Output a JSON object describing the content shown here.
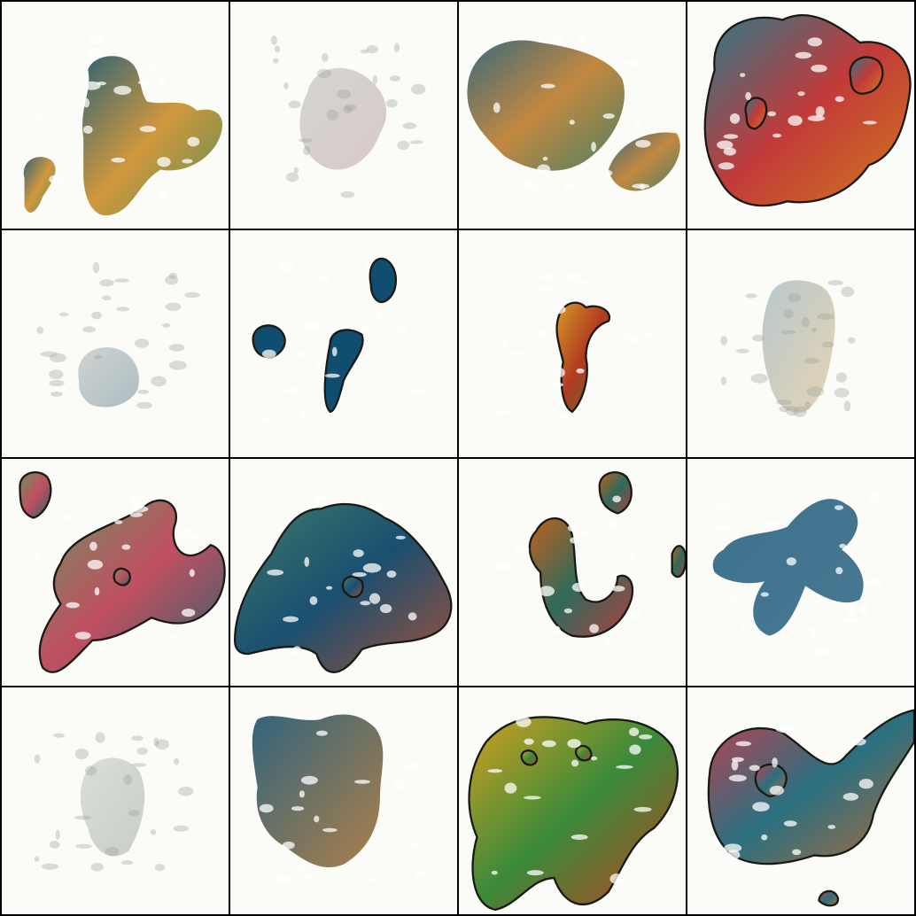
{
  "grid": {
    "rows": 4,
    "cols": 4,
    "background": "#fbfbf8",
    "border": "#000000"
  },
  "tiles": [
    {
      "style": "mixed",
      "colors": [
        "#0f4a5e",
        "#c9861c",
        "#3f7a3a"
      ]
    },
    {
      "style": "faint",
      "colors": [
        "#8a8f8a",
        "#9a6d6d"
      ]
    },
    {
      "style": "mixed",
      "colors": [
        "#1a4f66",
        "#b87420",
        "#2e6a4a"
      ]
    },
    {
      "style": "solid",
      "colors": [
        "#2b7a8a",
        "#c23a3a",
        "#d07a1a"
      ]
    },
    {
      "style": "faint",
      "colors": [
        "#7f8a8c",
        "#1b4a5e"
      ]
    },
    {
      "style": "blobs",
      "colors": [
        "#0f4e6e"
      ]
    },
    {
      "style": "small",
      "colors": [
        "#d49a2a",
        "#b23a20",
        "#4a7a3a"
      ]
    },
    {
      "style": "faint",
      "colors": [
        "#3a6a80",
        "#c08a30"
      ]
    },
    {
      "style": "solid",
      "colors": [
        "#6f8f5f",
        "#c05060",
        "#2f6070"
      ]
    },
    {
      "style": "solid",
      "colors": [
        "#3f7a6a",
        "#1a4f70",
        "#a0503a"
      ]
    },
    {
      "style": "solid",
      "colors": [
        "#c06020",
        "#2f6a5a",
        "#b04040"
      ]
    },
    {
      "style": "mixed",
      "colors": [
        "#1a5a7a",
        "#2a6080"
      ]
    },
    {
      "style": "faint",
      "colors": [
        "#a0a6a0",
        "#6a7a70"
      ]
    },
    {
      "style": "mixed",
      "colors": [
        "#0f4a66",
        "#a06a2a"
      ]
    },
    {
      "style": "solid",
      "colors": [
        "#d0a020",
        "#3a8a3a",
        "#c04020"
      ]
    },
    {
      "style": "solid",
      "colors": [
        "#c04050",
        "#2a7080",
        "#b06a3a"
      ]
    }
  ]
}
